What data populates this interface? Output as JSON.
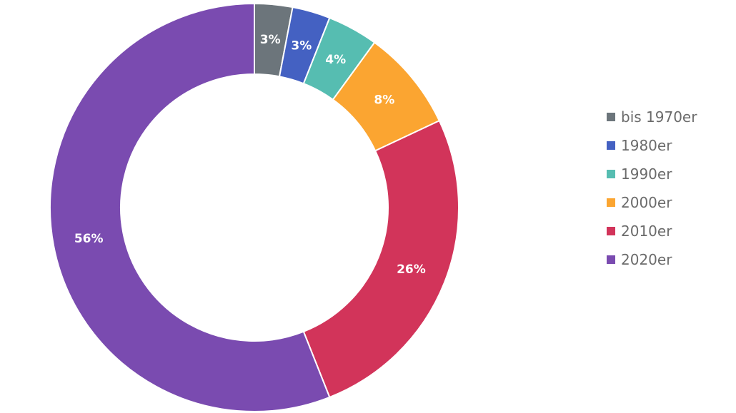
{
  "chart_data": {
    "type": "pie",
    "donut": true,
    "title": "",
    "legend_position": "right",
    "slices": [
      {
        "label": "bis 1970er",
        "value": 3,
        "value_label": "3%",
        "color": "#6c757b"
      },
      {
        "label": "1980er",
        "value": 3,
        "value_label": "3%",
        "color": "#4461c2"
      },
      {
        "label": "1990er",
        "value": 4,
        "value_label": "4%",
        "color": "#56bdb1"
      },
      {
        "label": "2000er",
        "value": 8,
        "value_label": "8%",
        "color": "#fba531"
      },
      {
        "label": "2010er",
        "value": 26,
        "value_label": "26%",
        "color": "#d2345a"
      },
      {
        "label": "2020er",
        "value": 56,
        "value_label": "56%",
        "color": "#7a4bb0"
      }
    ]
  }
}
